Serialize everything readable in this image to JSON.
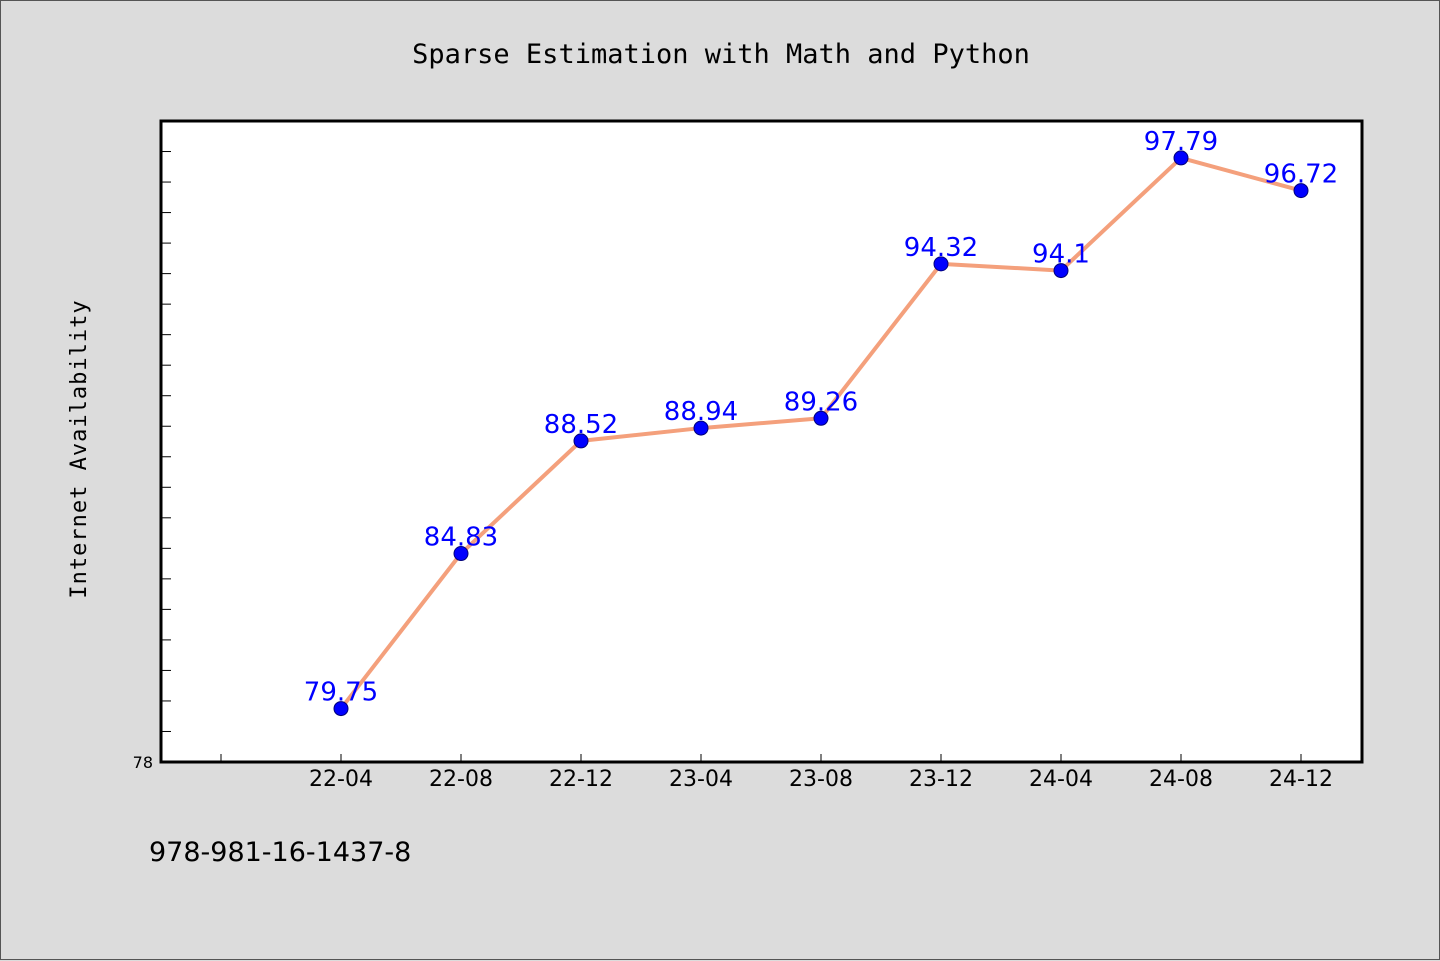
{
  "footnote": "978-981-16-1437-8",
  "chart_data": {
    "type": "line",
    "title": "Sparse Estimation with Math and Python",
    "ylabel": "Internet Availability",
    "xlabel": "",
    "categories": [
      "22-04",
      "22-08",
      "22-12",
      "23-04",
      "23-08",
      "23-12",
      "24-04",
      "24-08",
      "24-12"
    ],
    "series": [
      {
        "values": [
          79.75,
          84.83,
          88.52,
          88.94,
          89.26,
          94.32,
          94.1,
          97.79,
          96.72
        ],
        "labels": [
          "79.75",
          "84.83",
          "88.52",
          "88.94",
          "89.26",
          "94.32",
          "94.1",
          "97.79",
          "96.72"
        ],
        "line_color": "#f4a07c",
        "marker_color": "#0000ff"
      }
    ],
    "ylim": [
      78,
      99.0
    ],
    "yticks": [
      78
    ],
    "yticks_labels": [
      "78"
    ],
    "grid": false,
    "legend": "none",
    "colors": {
      "background": "#dcdcdc",
      "plot_background": "#ffffff",
      "label_color": "#0000ff"
    }
  }
}
